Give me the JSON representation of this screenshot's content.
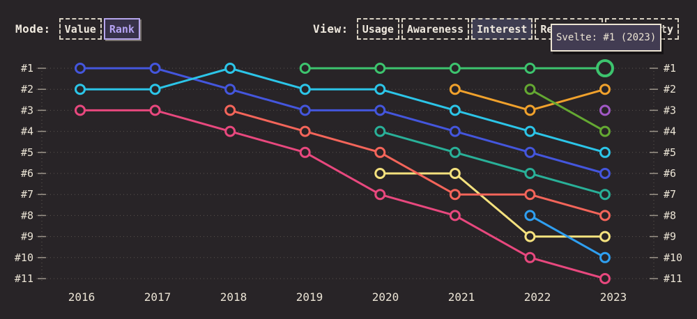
{
  "page": {
    "background": "#282427"
  },
  "mode_toolbar": {
    "label": "Mode:",
    "options": [
      {
        "label": "Value",
        "active": false
      },
      {
        "label": "Rank",
        "active": true
      }
    ]
  },
  "view_toolbar": {
    "label": "View:",
    "options": [
      {
        "label": "Usage",
        "active": false
      },
      {
        "label": "Awareness",
        "active": false
      },
      {
        "label": "Interest",
        "active": true
      },
      {
        "label": "Retention",
        "active": false,
        "occluded_by_tooltip": true
      },
      {
        "label": "Positivity",
        "active": false,
        "partially_occluded_by_tooltip": true
      }
    ]
  },
  "tooltip": {
    "text": "Svelte: #1 (2023)"
  },
  "chart_data": {
    "type": "line",
    "subtype": "bump-rank-chart",
    "title": "",
    "x_labels": [
      "2016",
      "2017",
      "2018",
      "2019",
      "2020",
      "2021",
      "2022",
      "2023"
    ],
    "rank_labels": [
      "#1",
      "#2",
      "#3",
      "#4",
      "#5",
      "#6",
      "#7",
      "#8",
      "#9",
      "#10",
      "#11"
    ],
    "y_axis": {
      "range": [
        1,
        11
      ],
      "inverted": true,
      "shown_on_both_sides": true
    },
    "grid": "dotted-horizontal",
    "legend": "none",
    "series": [
      {
        "id": "royal-blue",
        "color": "#4456dd",
        "ranks": [
          1,
          1,
          2,
          3,
          3,
          4,
          5,
          6
        ]
      },
      {
        "id": "cyan",
        "color": "#2cc5e8",
        "ranks": [
          2,
          2,
          1,
          2,
          2,
          3,
          4,
          5
        ]
      },
      {
        "id": "pink",
        "color": "#e8487e",
        "ranks": [
          3,
          3,
          4,
          5,
          7,
          8,
          10,
          11
        ]
      },
      {
        "id": "yellow",
        "color": "#f4e17e",
        "ranks": [
          null,
          null,
          null,
          null,
          6,
          6,
          9,
          9
        ]
      },
      {
        "id": "salmon",
        "color": "#f4655a",
        "ranks": [
          null,
          null,
          3,
          4,
          5,
          7,
          7,
          8
        ]
      },
      {
        "id": "teal",
        "color": "#29b098",
        "ranks": [
          null,
          null,
          null,
          null,
          4,
          5,
          6,
          7
        ]
      },
      {
        "id": "orange",
        "color": "#f0a12c",
        "ranks": [
          null,
          null,
          null,
          null,
          null,
          2,
          3,
          2
        ]
      },
      {
        "id": "lime",
        "color": "#64a832",
        "ranks": [
          null,
          null,
          null,
          null,
          null,
          null,
          2,
          4
        ]
      },
      {
        "id": "sky-blue",
        "color": "#2f9ff0",
        "ranks": [
          null,
          null,
          null,
          null,
          null,
          null,
          8,
          10
        ]
      },
      {
        "id": "green",
        "color": "#3dc46e",
        "label": "Svelte",
        "ranks": [
          null,
          null,
          null,
          1,
          1,
          1,
          1,
          1
        ]
      },
      {
        "id": "purple",
        "color": "#a158c5",
        "ranks": [
          null,
          null,
          null,
          null,
          null,
          null,
          null,
          3
        ]
      }
    ],
    "highlight": {
      "series_id": "green",
      "x": "2023",
      "rank": 1
    }
  },
  "colors": {
    "background": "#282427",
    "text": "#f0eadf",
    "grid": "#8d8679",
    "mode_active_accent": "#b4a2f2",
    "view_active_background": "#3e3d51",
    "tooltip_border": "#ece4d3",
    "tooltip_background": "#423c52"
  }
}
